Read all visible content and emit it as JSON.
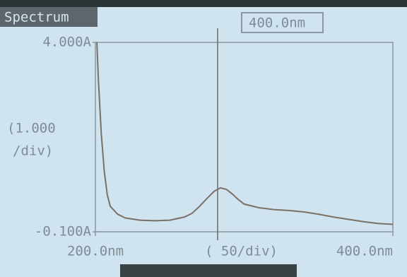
{
  "chart_data": {
    "type": "line",
    "title": "Spectrum",
    "cursor_label": "400.0nm",
    "y_scale_label": [
      "(1.000",
      "/div)"
    ],
    "x_scale_label": "( 50/div)",
    "xlim": [
      200,
      400
    ],
    "ylim": [
      -0.1,
      4.0
    ],
    "xticks": [
      {
        "value": 200,
        "label": "200.0nm"
      },
      {
        "value": 400,
        "label": "400.0nm"
      }
    ],
    "yticks": [
      {
        "value": 4.0,
        "label": "4.000A"
      },
      {
        "value": -0.1,
        "label": "-0.100A"
      }
    ],
    "color": "#7a7068",
    "x": [
      201,
      202,
      204,
      206,
      208,
      210,
      215,
      220,
      230,
      240,
      250,
      260,
      265,
      270,
      275,
      280,
      284,
      288,
      292,
      296,
      300,
      310,
      320,
      330,
      340,
      350,
      360,
      370,
      380,
      390,
      400
    ],
    "values": [
      4.0,
      3.2,
      2.0,
      1.2,
      0.7,
      0.45,
      0.28,
      0.2,
      0.15,
      0.14,
      0.15,
      0.22,
      0.3,
      0.45,
      0.62,
      0.78,
      0.85,
      0.82,
      0.72,
      0.6,
      0.5,
      0.42,
      0.38,
      0.36,
      0.33,
      0.28,
      0.22,
      0.17,
      0.12,
      0.08,
      0.06
    ]
  }
}
